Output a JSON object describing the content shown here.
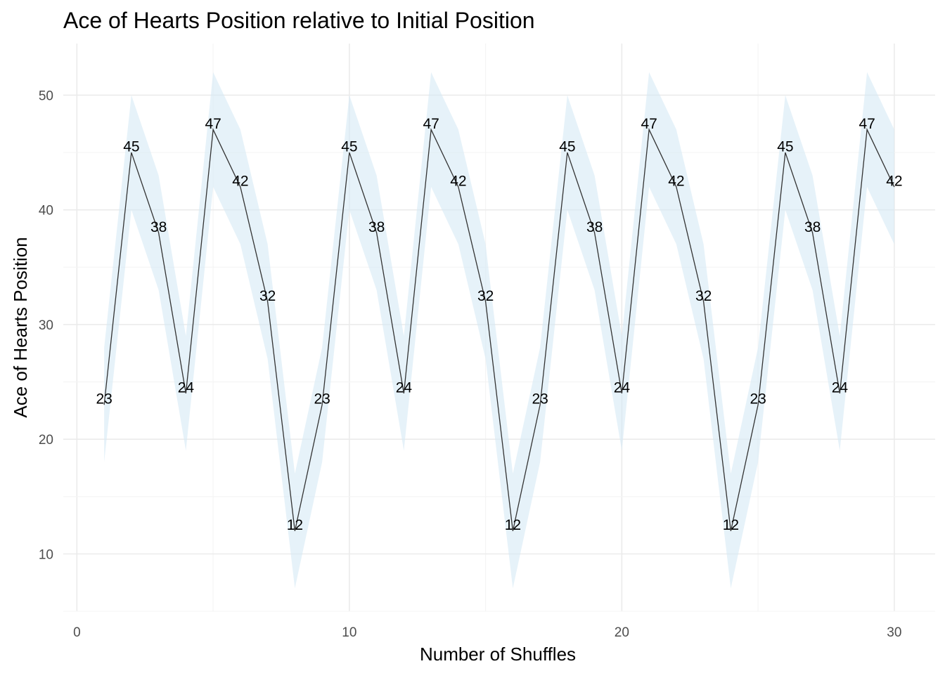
{
  "chart_data": {
    "type": "line",
    "title": "Ace of Hearts Position relative to Initial Position",
    "xlabel": "Number of Shuffles",
    "ylabel": "Ace of Hearts Position",
    "xlim": [
      -0.5,
      31.5
    ],
    "ylim": [
      5,
      54.5
    ],
    "x_ticks": [
      0,
      10,
      20,
      30
    ],
    "y_ticks": [
      10,
      20,
      30,
      40,
      50
    ],
    "grid": true,
    "band_offset": 5,
    "colors": {
      "line": "#333333",
      "band": "#d6e9f5",
      "grid_major": "#ebebeb",
      "grid_minor": "#f4f4f4",
      "label": "#000000"
    },
    "series": [
      {
        "x": [
          1,
          2,
          3,
          4,
          5,
          6,
          7,
          8,
          9,
          10,
          11,
          12,
          13,
          14,
          15,
          16,
          17,
          18,
          19,
          20,
          21,
          22,
          23,
          24,
          25,
          26,
          27,
          28,
          29,
          30
        ],
        "values": [
          23,
          45,
          38,
          24,
          47,
          42,
          32,
          12,
          23,
          45,
          38,
          24,
          47,
          42,
          32,
          12,
          23,
          45,
          38,
          24,
          47,
          42,
          32,
          12,
          23,
          45,
          38,
          24,
          47,
          42
        ]
      }
    ]
  }
}
